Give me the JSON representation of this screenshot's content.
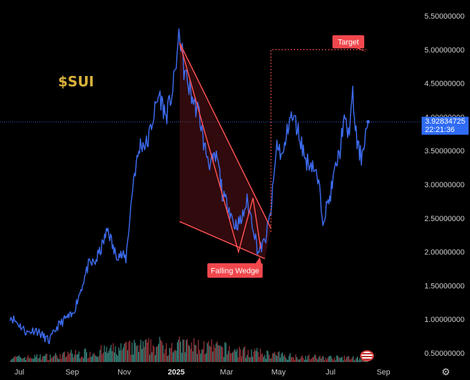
{
  "chart_data": {
    "type": "line",
    "ticker_label": "$SUI",
    "x_ticks": [
      "Jul",
      "Sep",
      "Nov",
      "2025",
      "Mar",
      "May",
      "Jul",
      "Sep"
    ],
    "y_ticks": [
      "5.50000000",
      "5.00000000",
      "4.50000000",
      "4.00000000",
      "3.50000000",
      "3.00000000",
      "2.50000000",
      "2.00000000",
      "1.50000000",
      "1.00000000",
      "0.50000000"
    ],
    "ylim": [
      0.35,
      5.6
    ],
    "current_price": "3.92834725",
    "countdown": "22:21:36",
    "price_series": [
      [
        "2024-06-20",
        1.05
      ],
      [
        "2024-07-01",
        0.92
      ],
      [
        "2024-07-10",
        0.8
      ],
      [
        "2024-07-20",
        0.85
      ],
      [
        "2024-07-28",
        0.76
      ],
      [
        "2024-08-05",
        0.68
      ],
      [
        "2024-08-15",
        0.9
      ],
      [
        "2024-08-25",
        1.02
      ],
      [
        "2024-09-01",
        1.05
      ],
      [
        "2024-09-10",
        1.4
      ],
      [
        "2024-09-20",
        1.8
      ],
      [
        "2024-09-28",
        1.85
      ],
      [
        "2024-10-05",
        2.05
      ],
      [
        "2024-10-13",
        2.35
      ],
      [
        "2024-10-20",
        2.0
      ],
      [
        "2024-10-28",
        1.95
      ],
      [
        "2024-11-03",
        1.9
      ],
      [
        "2024-11-12",
        3.1
      ],
      [
        "2024-11-20",
        3.6
      ],
      [
        "2024-11-28",
        3.6
      ],
      [
        "2024-12-05",
        4.0
      ],
      [
        "2024-12-12",
        4.35
      ],
      [
        "2024-12-20",
        4.0
      ],
      [
        "2024-12-28",
        4.4
      ],
      [
        "2025-01-05",
        5.25
      ],
      [
        "2025-01-10",
        4.7
      ],
      [
        "2025-01-17",
        4.4
      ],
      [
        "2025-01-22",
        4.2
      ],
      [
        "2025-01-28",
        4.05
      ],
      [
        "2025-02-03",
        3.55
      ],
      [
        "2025-02-10",
        3.3
      ],
      [
        "2025-02-18",
        3.4
      ],
      [
        "2025-02-25",
        2.8
      ],
      [
        "2025-03-03",
        2.7
      ],
      [
        "2025-03-10",
        2.4
      ],
      [
        "2025-03-18",
        2.45
      ],
      [
        "2025-03-25",
        2.75
      ],
      [
        "2025-04-01",
        2.4
      ],
      [
        "2025-04-07",
        2.0
      ],
      [
        "2025-04-15",
        2.15
      ],
      [
        "2025-04-22",
        2.6
      ],
      [
        "2025-04-29",
        3.6
      ],
      [
        "2025-05-06",
        3.4
      ],
      [
        "2025-05-14",
        4.0
      ],
      [
        "2025-05-20",
        3.95
      ],
      [
        "2025-05-26",
        3.7
      ],
      [
        "2025-06-02",
        3.35
      ],
      [
        "2025-06-10",
        3.3
      ],
      [
        "2025-06-17",
        3.0
      ],
      [
        "2025-06-22",
        2.5
      ],
      [
        "2025-06-30",
        2.8
      ],
      [
        "2025-07-06",
        3.2
      ],
      [
        "2025-07-12",
        3.5
      ],
      [
        "2025-07-16",
        3.95
      ],
      [
        "2025-07-22",
        3.75
      ],
      [
        "2025-07-27",
        4.3
      ],
      [
        "2025-08-01",
        3.6
      ],
      [
        "2025-08-06",
        3.4
      ],
      [
        "2025-08-10",
        3.7
      ],
      [
        "2025-08-14",
        3.93
      ]
    ],
    "volume_max": 1,
    "volume_seed": 7,
    "annotations": {
      "pattern_label": "Falling Wedge",
      "target_label": "Target",
      "target_price": 5.0,
      "breakout_date": "2025-04-22",
      "upper_line": [
        [
          "2025-01-05",
          5.1
        ],
        [
          "2025-04-22",
          2.35
        ]
      ],
      "lower_line": [
        [
          "2025-01-05",
          2.45
        ],
        [
          "2025-04-15",
          1.9
        ]
      ],
      "inner_zigzag": [
        [
          "2025-03-15",
          2.0
        ],
        [
          "2025-04-01",
          2.8
        ],
        [
          "2025-04-10",
          2.05
        ]
      ]
    },
    "colors": {
      "line": "#3d6cf0",
      "up_volume": "#3c8f86",
      "down_volume": "#a4373d",
      "wedge": "#ff5252",
      "label_bg": "#f1474c",
      "price_line": "#3d6cf0",
      "ticker": "#d9b13b"
    },
    "grid": false,
    "legend": "none"
  }
}
